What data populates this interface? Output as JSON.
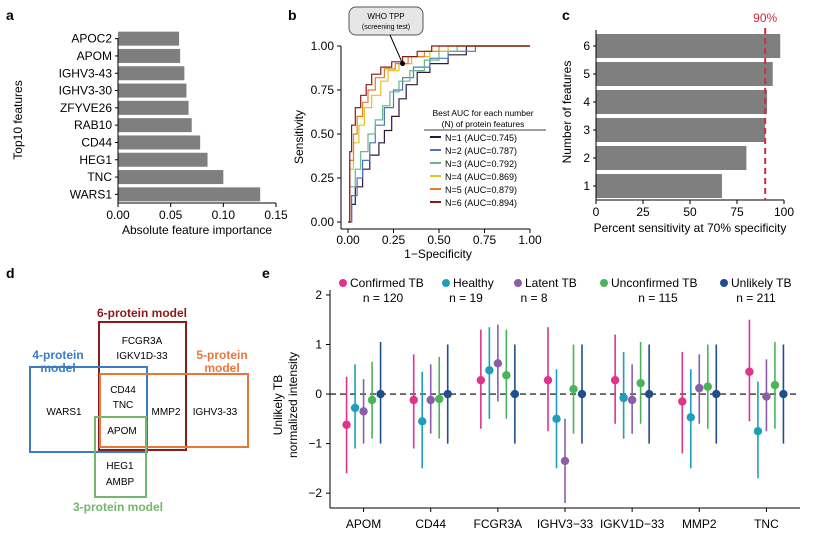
{
  "panels": {
    "a": "a",
    "b": "b",
    "c": "c",
    "d": "d",
    "e": "e"
  },
  "chart_data": [
    {
      "id": "a",
      "type": "bar",
      "orientation": "horizontal",
      "categories": [
        "APOC2",
        "APOM",
        "IGHV3-43",
        "IGHV3-30",
        "ZFYVE26",
        "RAB10",
        "CD44",
        "HEG1",
        "TNC",
        "WARS1"
      ],
      "values": [
        0.058,
        0.059,
        0.063,
        0.065,
        0.067,
        0.07,
        0.078,
        0.085,
        0.1,
        0.135
      ],
      "xlabel": "Absolute feature importance",
      "ylabel": "Top10 features",
      "xlim": [
        0,
        0.15
      ],
      "xticks": [
        "0.00",
        "0.05",
        "0.10",
        "0.15"
      ],
      "bar_color": "#7f7f7f"
    },
    {
      "id": "b",
      "type": "line",
      "title": "",
      "xlabel": "1−Specificity",
      "ylabel": "Sensitivity",
      "xlim": [
        0,
        1
      ],
      "ylim": [
        0,
        1
      ],
      "xticks": [
        "0.00",
        "0.25",
        "0.50",
        "0.75",
        "1.00"
      ],
      "yticks": [
        "0.00",
        "0.25",
        "0.50",
        "0.75",
        "1.00"
      ],
      "annotation": {
        "line1": "WHO TPP",
        "line2": "(screening test)",
        "x": 0.3,
        "y": 0.9
      },
      "legend_title_line1": "Best AUC for each number",
      "legend_title_line2": "(N) of protein features",
      "series": [
        {
          "name": "N=1 (AUC=0.745)",
          "color": "#2b1a3a",
          "points": [
            [
              0,
              0
            ],
            [
              0.02,
              0
            ],
            [
              0.02,
              0.1
            ],
            [
              0.04,
              0.1
            ],
            [
              0.04,
              0.2
            ],
            [
              0.08,
              0.2
            ],
            [
              0.08,
              0.3
            ],
            [
              0.12,
              0.3
            ],
            [
              0.12,
              0.38
            ],
            [
              0.17,
              0.38
            ],
            [
              0.17,
              0.45
            ],
            [
              0.2,
              0.45
            ],
            [
              0.2,
              0.52
            ],
            [
              0.24,
              0.52
            ],
            [
              0.24,
              0.6
            ],
            [
              0.28,
              0.6
            ],
            [
              0.28,
              0.7
            ],
            [
              0.32,
              0.7
            ],
            [
              0.32,
              0.78
            ],
            [
              0.38,
              0.78
            ],
            [
              0.38,
              0.85
            ],
            [
              0.45,
              0.85
            ],
            [
              0.45,
              0.9
            ],
            [
              0.55,
              0.9
            ],
            [
              0.55,
              0.95
            ],
            [
              0.65,
              0.95
            ],
            [
              0.65,
              1
            ],
            [
              1,
              1
            ]
          ]
        },
        {
          "name": "N=2 (AUC=0.787)",
          "color": "#4c78b5",
          "points": [
            [
              0,
              0
            ],
            [
              0.02,
              0
            ],
            [
              0.02,
              0.15
            ],
            [
              0.05,
              0.15
            ],
            [
              0.05,
              0.25
            ],
            [
              0.08,
              0.25
            ],
            [
              0.08,
              0.35
            ],
            [
              0.12,
              0.35
            ],
            [
              0.12,
              0.45
            ],
            [
              0.15,
              0.45
            ],
            [
              0.15,
              0.55
            ],
            [
              0.2,
              0.55
            ],
            [
              0.2,
              0.65
            ],
            [
              0.25,
              0.65
            ],
            [
              0.25,
              0.75
            ],
            [
              0.3,
              0.75
            ],
            [
              0.3,
              0.82
            ],
            [
              0.36,
              0.82
            ],
            [
              0.36,
              0.88
            ],
            [
              0.45,
              0.88
            ],
            [
              0.45,
              0.93
            ],
            [
              0.55,
              0.93
            ],
            [
              0.55,
              0.97
            ],
            [
              0.7,
              0.97
            ],
            [
              0.7,
              1
            ],
            [
              1,
              1
            ]
          ]
        },
        {
          "name": "N=3 (AUC=0.792)",
          "color": "#66b88a",
          "points": [
            [
              0,
              0
            ],
            [
              0.01,
              0
            ],
            [
              0.01,
              0.2
            ],
            [
              0.04,
              0.2
            ],
            [
              0.04,
              0.3
            ],
            [
              0.07,
              0.3
            ],
            [
              0.07,
              0.4
            ],
            [
              0.11,
              0.4
            ],
            [
              0.11,
              0.5
            ],
            [
              0.15,
              0.5
            ],
            [
              0.15,
              0.58
            ],
            [
              0.19,
              0.58
            ],
            [
              0.19,
              0.66
            ],
            [
              0.23,
              0.66
            ],
            [
              0.23,
              0.74
            ],
            [
              0.28,
              0.74
            ],
            [
              0.28,
              0.8
            ],
            [
              0.34,
              0.8
            ],
            [
              0.34,
              0.86
            ],
            [
              0.42,
              0.86
            ],
            [
              0.42,
              0.92
            ],
            [
              0.5,
              0.92
            ],
            [
              0.5,
              0.97
            ],
            [
              0.6,
              0.97
            ],
            [
              0.6,
              1
            ],
            [
              1,
              1
            ]
          ]
        },
        {
          "name": "N=4 (AUC=0.869)",
          "color": "#e6c21a",
          "points": [
            [
              0,
              0
            ],
            [
              0.01,
              0
            ],
            [
              0.01,
              0.3
            ],
            [
              0.03,
              0.3
            ],
            [
              0.03,
              0.45
            ],
            [
              0.06,
              0.45
            ],
            [
              0.06,
              0.55
            ],
            [
              0.09,
              0.55
            ],
            [
              0.09,
              0.65
            ],
            [
              0.13,
              0.65
            ],
            [
              0.13,
              0.72
            ],
            [
              0.18,
              0.72
            ],
            [
              0.18,
              0.8
            ],
            [
              0.22,
              0.8
            ],
            [
              0.22,
              0.86
            ],
            [
              0.28,
              0.86
            ],
            [
              0.28,
              0.9
            ],
            [
              0.35,
              0.9
            ],
            [
              0.35,
              0.94
            ],
            [
              0.45,
              0.94
            ],
            [
              0.45,
              0.97
            ],
            [
              0.55,
              0.97
            ],
            [
              0.55,
              1
            ],
            [
              1,
              1
            ]
          ]
        },
        {
          "name": "N=5 (AUC=0.879)",
          "color": "#e87b2c",
          "points": [
            [
              0,
              0
            ],
            [
              0.01,
              0
            ],
            [
              0.01,
              0.35
            ],
            [
              0.03,
              0.35
            ],
            [
              0.03,
              0.5
            ],
            [
              0.05,
              0.5
            ],
            [
              0.05,
              0.6
            ],
            [
              0.08,
              0.6
            ],
            [
              0.08,
              0.68
            ],
            [
              0.11,
              0.68
            ],
            [
              0.11,
              0.75
            ],
            [
              0.15,
              0.75
            ],
            [
              0.15,
              0.82
            ],
            [
              0.2,
              0.82
            ],
            [
              0.2,
              0.87
            ],
            [
              0.26,
              0.87
            ],
            [
              0.26,
              0.9
            ],
            [
              0.33,
              0.9
            ],
            [
              0.33,
              0.94
            ],
            [
              0.42,
              0.94
            ],
            [
              0.42,
              0.97
            ],
            [
              0.5,
              0.97
            ],
            [
              0.5,
              1
            ],
            [
              1,
              1
            ]
          ]
        },
        {
          "name": "N=6 (AUC=0.894)",
          "color": "#8b1a1a",
          "points": [
            [
              0,
              0
            ],
            [
              0.01,
              0
            ],
            [
              0.01,
              0.4
            ],
            [
              0.02,
              0.4
            ],
            [
              0.02,
              0.55
            ],
            [
              0.04,
              0.55
            ],
            [
              0.04,
              0.65
            ],
            [
              0.07,
              0.65
            ],
            [
              0.07,
              0.72
            ],
            [
              0.1,
              0.72
            ],
            [
              0.1,
              0.78
            ],
            [
              0.13,
              0.78
            ],
            [
              0.13,
              0.84
            ],
            [
              0.18,
              0.84
            ],
            [
              0.18,
              0.88
            ],
            [
              0.24,
              0.88
            ],
            [
              0.24,
              0.91
            ],
            [
              0.3,
              0.91
            ],
            [
              0.3,
              0.94
            ],
            [
              0.38,
              0.94
            ],
            [
              0.38,
              0.97
            ],
            [
              0.46,
              0.97
            ],
            [
              0.46,
              1
            ],
            [
              1,
              1
            ]
          ]
        }
      ]
    },
    {
      "id": "c",
      "type": "bar",
      "orientation": "horizontal",
      "categories": [
        "1",
        "2",
        "3",
        "4",
        "5",
        "6"
      ],
      "values": [
        67,
        80,
        90,
        91,
        94,
        98
      ],
      "xlabel": "Percent sensitivity at 70% specificity",
      "ylabel": "Number of features",
      "xlim": [
        0,
        100
      ],
      "xticks": [
        "0",
        "25",
        "50",
        "75",
        "100"
      ],
      "threshold": {
        "value": 90,
        "label": "90%",
        "color": "#d7263d"
      },
      "bar_color": "#7f7f7f"
    },
    {
      "id": "e",
      "type": "scatter",
      "subtype": "point-range",
      "ylabel_line1": "Unlikely TB",
      "ylabel_line2": "normalized intensity",
      "ylim": [
        -2.3,
        2.1
      ],
      "yticks": [
        "−2",
        "−1",
        "0",
        "1",
        "2"
      ],
      "reference_line": 0,
      "categories": [
        "APOM",
        "CD44",
        "FCGR3A",
        "IGHV3−33",
        "IGKV1D−33",
        "MMP2",
        "TNC"
      ],
      "series": [
        {
          "name": "Confirmed TB",
          "n_label": "n = 120",
          "color": "#e0338a",
          "mean": [
            -0.62,
            -0.12,
            0.28,
            0.28,
            0.28,
            -0.15,
            0.45
          ],
          "low": [
            -1.6,
            -1.1,
            -0.7,
            -0.75,
            -0.6,
            -1.2,
            -0.55
          ],
          "high": [
            0.35,
            0.8,
            1.3,
            1.35,
            1.2,
            0.85,
            1.5
          ]
        },
        {
          "name": "Healthy",
          "n_label": "n = 19",
          "color": "#1f9fb7",
          "mean": [
            -0.28,
            -0.55,
            0.48,
            -0.5,
            -0.08,
            -0.47,
            -0.75
          ],
          "low": [
            -1.1,
            -1.5,
            -0.5,
            -1.5,
            -0.9,
            -1.5,
            -1.7
          ],
          "high": [
            0.6,
            0.45,
            1.35,
            0.5,
            0.85,
            0.5,
            0.25
          ]
        },
        {
          "name": "Latent TB",
          "n_label": "n = 8",
          "color": "#8b5ea8",
          "mean": [
            -0.35,
            -0.12,
            0.62,
            -1.35,
            -0.12,
            0.12,
            -0.05
          ],
          "low": [
            -1.0,
            -0.8,
            -0.15,
            -2.2,
            -0.8,
            -0.6,
            -0.75
          ],
          "high": [
            0.3,
            0.6,
            1.4,
            -0.5,
            0.6,
            0.8,
            0.7
          ]
        },
        {
          "name": "Unconfirmed TB",
          "n_label": "n = 115",
          "color": "#4bb45a",
          "mean": [
            -0.12,
            -0.1,
            0.38,
            0.1,
            0.22,
            0.15,
            0.18
          ],
          "low": [
            -0.9,
            -0.9,
            -0.5,
            -0.8,
            -0.6,
            -0.7,
            -0.7
          ],
          "high": [
            0.65,
            0.75,
            1.3,
            1.0,
            1.05,
            1.0,
            1.05
          ]
        },
        {
          "name": "Unlikely TB",
          "n_label": "n = 211",
          "color": "#1f4e8c",
          "mean": [
            0.0,
            0.0,
            0.0,
            0.0,
            0.0,
            0.0,
            0.0
          ],
          "low": [
            -1.0,
            -1.0,
            -1.0,
            -1.0,
            -1.0,
            -1.0,
            -1.0
          ],
          "high": [
            1.05,
            1.0,
            1.0,
            1.0,
            1.0,
            1.0,
            1.0
          ]
        }
      ]
    }
  ],
  "venn": {
    "six_label": "6-protein model",
    "six_color": "#8b1a1a",
    "four_label_line1": "4-protein",
    "four_label_line2": "model",
    "four_color": "#3a7cc4",
    "five_label_line1": "5-protein",
    "five_label_line2": "model",
    "five_color": "#e8773a",
    "three_label": "3-protein model",
    "three_color": "#72b86b",
    "items": {
      "fcgr3a": "FCGR3A",
      "igkv1d33": "IGKV1D-33",
      "wars1": "WARS1",
      "cd44": "CD44",
      "tnc": "TNC",
      "mmp2": "MMP2",
      "ighv333": "IGHV3-33",
      "apom": "APOM",
      "heg1": "HEG1",
      "ambp": "AMBP"
    }
  }
}
